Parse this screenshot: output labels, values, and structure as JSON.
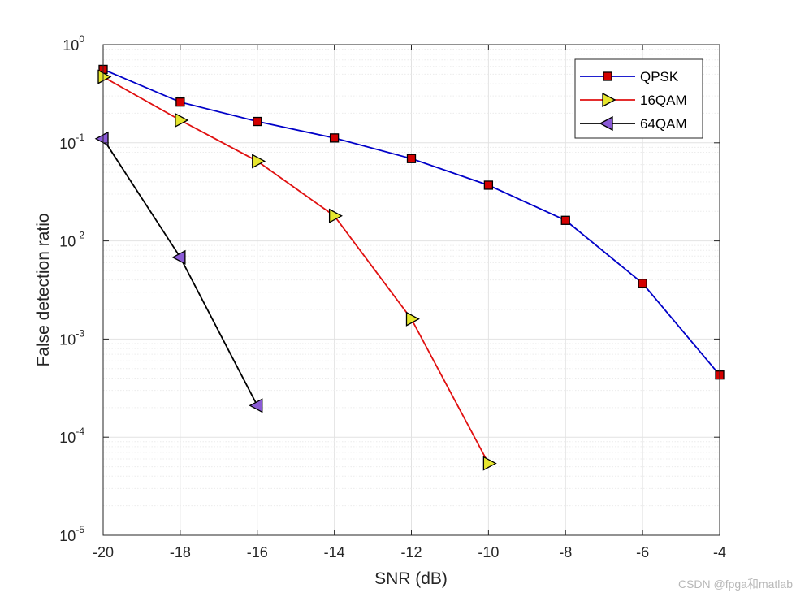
{
  "chart_data": {
    "type": "line",
    "xlabel": "SNR (dB)",
    "ylabel": "False detection ratio",
    "xlim": [
      -20,
      -4
    ],
    "ylim": [
      1e-05,
      1
    ],
    "yscale": "log",
    "grid": true,
    "minor_grid": true,
    "legend_position": "top-right",
    "xticks": [
      -20,
      -18,
      -16,
      -14,
      -12,
      -10,
      -8,
      -6,
      -4
    ],
    "xtick_labels": [
      "-20",
      "-18",
      "-16",
      "-14",
      "-12",
      "-10",
      "-8",
      "-6",
      "-4"
    ],
    "yticks": [
      {
        "base": "10",
        "exp": "0",
        "value": 1
      },
      {
        "base": "10",
        "exp": "-1",
        "value": 0.1
      },
      {
        "base": "10",
        "exp": "-2",
        "value": 0.01
      },
      {
        "base": "10",
        "exp": "-3",
        "value": 0.001
      },
      {
        "base": "10",
        "exp": "-4",
        "value": 0.0001
      },
      {
        "base": "10",
        "exp": "-5",
        "value": 1e-05
      }
    ],
    "series": [
      {
        "name": "QPSK",
        "color": "#0000c8",
        "marker": "square",
        "marker_color": "#d40000",
        "x": [
          -20,
          -18,
          -16,
          -14,
          -12,
          -10,
          -8,
          -6,
          -4
        ],
        "y": [
          0.56,
          0.26,
          0.165,
          0.112,
          0.069,
          0.037,
          0.0162,
          0.0037,
          0.00043
        ]
      },
      {
        "name": "16QAM",
        "color": "#e01010",
        "marker": "triangle-right",
        "marker_color": "#e6e62e",
        "x": [
          -20,
          -18,
          -16,
          -14,
          -12,
          -10
        ],
        "y": [
          0.47,
          0.17,
          0.065,
          0.018,
          0.0016,
          5.4e-05
        ]
      },
      {
        "name": "64QAM",
        "color": "#000000",
        "marker": "triangle-left",
        "marker_color": "#8a5ad6",
        "x": [
          -20,
          -18,
          -16
        ],
        "y": [
          0.11,
          0.0068,
          0.00021
        ]
      }
    ]
  },
  "watermark": "CSDN @fpga和matlab"
}
